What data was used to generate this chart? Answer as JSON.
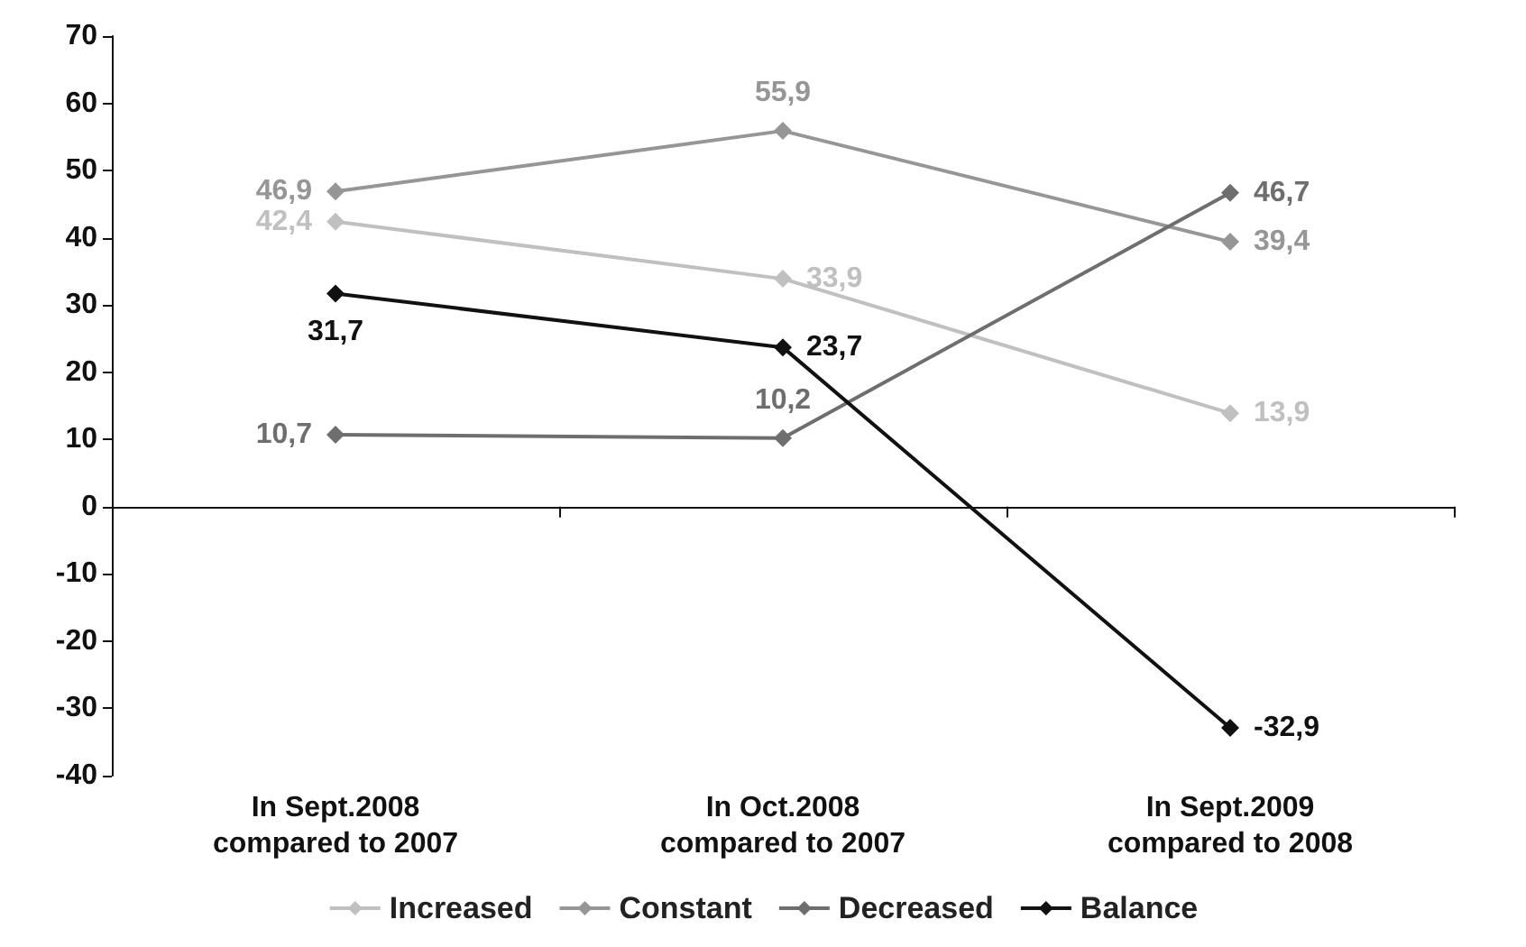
{
  "chart_data": {
    "type": "line",
    "categories": [
      "In Sept.2008\ncompared to 2007",
      "In Oct.2008\ncompared to 2007",
      "In Sept.2009\ncompared to 2008"
    ],
    "series": [
      {
        "name": "Increased",
        "color": "#c0c0c0",
        "values": [
          42.4,
          33.9,
          13.9
        ],
        "value_labels": [
          "42,4",
          "33,9",
          "13,9"
        ]
      },
      {
        "name": "Constant",
        "color": "#969696",
        "values": [
          46.9,
          55.9,
          39.4
        ],
        "value_labels": [
          "46,9",
          "55,9",
          "39,4"
        ]
      },
      {
        "name": "Decreased",
        "color": "#6e6e6e",
        "values": [
          10.7,
          10.2,
          46.7
        ],
        "value_labels": [
          "10,7",
          "10,2",
          "46,7"
        ]
      },
      {
        "name": "Balance",
        "color": "#111111",
        "values": [
          31.7,
          23.7,
          -32.9
        ],
        "value_labels": [
          "31,7",
          "23,7",
          "-32,9"
        ]
      }
    ],
    "ylim": [
      -40,
      70
    ],
    "yticks": [
      -40,
      -30,
      -20,
      -10,
      0,
      10,
      20,
      30,
      40,
      50,
      60,
      70
    ],
    "legend": "bottom",
    "marker": "diamond",
    "line_style": "solid"
  }
}
